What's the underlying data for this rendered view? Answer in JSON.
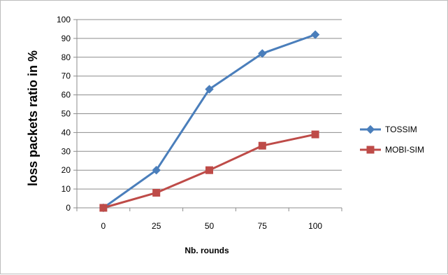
{
  "chart_data": {
    "type": "line",
    "title": "",
    "xlabel": "Nb. rounds",
    "ylabel": "loss packets ratio in %",
    "categories": [
      "0",
      "25",
      "50",
      "75",
      "100"
    ],
    "ylim": [
      0,
      100
    ],
    "yticks": [
      "0",
      "10",
      "20",
      "30",
      "40",
      "50",
      "60",
      "70",
      "80",
      "90",
      "100"
    ],
    "grid": true,
    "legend_position": "right",
    "series": [
      {
        "name": "TOSSIM",
        "values": [
          0,
          20,
          63,
          82,
          92
        ],
        "color": "#4a7ebb",
        "marker": "diamond"
      },
      {
        "name": "MOBI-SIM",
        "values": [
          0,
          8,
          20,
          33,
          39
        ],
        "color": "#be4b48",
        "marker": "square"
      }
    ]
  }
}
